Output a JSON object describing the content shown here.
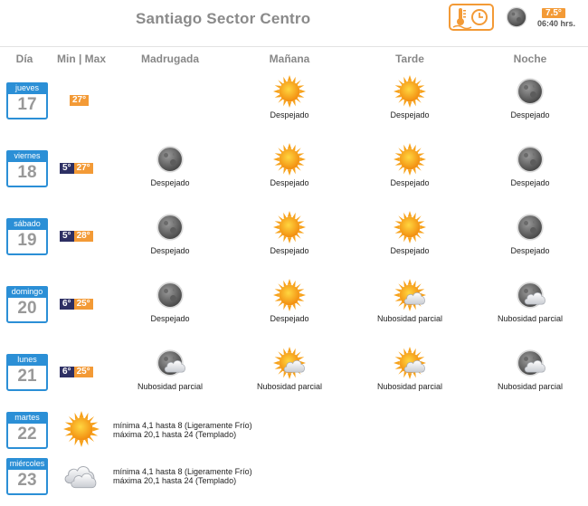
{
  "header": {
    "city": "Santiago Sector Centro",
    "current_icon": "thermometer-clock-icon",
    "current_condition_icon": "moon-icon",
    "current_temp": "7.5°",
    "current_time": "06:40 hrs."
  },
  "columns": {
    "dia": "Día",
    "minmax": "Min | Max",
    "madrugada": "Madrugada",
    "manana": "Mañana",
    "tarde": "Tarde",
    "noche": "Noche"
  },
  "colors": {
    "day_blue": "#2b8fd6",
    "min_navy": "#2d2f63",
    "max_orange": "#f39a36"
  },
  "days": [
    {
      "name": "jueves",
      "num": "17",
      "min": "",
      "max": "27°",
      "madrugada": {
        "icon": "",
        "label": ""
      },
      "manana": {
        "icon": "sun-icon",
        "label": "Despejado"
      },
      "tarde": {
        "icon": "sun-icon",
        "label": "Despejado"
      },
      "noche": {
        "icon": "moon-icon",
        "label": "Despejado"
      }
    },
    {
      "name": "viernes",
      "num": "18",
      "min": "5°",
      "max": "27°",
      "madrugada": {
        "icon": "moon-icon",
        "label": "Despejado"
      },
      "manana": {
        "icon": "sun-icon",
        "label": "Despejado"
      },
      "tarde": {
        "icon": "sun-icon",
        "label": "Despejado"
      },
      "noche": {
        "icon": "moon-icon",
        "label": "Despejado"
      }
    },
    {
      "name": "sábado",
      "num": "19",
      "min": "5°",
      "max": "28°",
      "madrugada": {
        "icon": "moon-icon",
        "label": "Despejado"
      },
      "manana": {
        "icon": "sun-icon",
        "label": "Despejado"
      },
      "tarde": {
        "icon": "sun-icon",
        "label": "Despejado"
      },
      "noche": {
        "icon": "moon-icon",
        "label": "Despejado"
      }
    },
    {
      "name": "domingo",
      "num": "20",
      "min": "6°",
      "max": "25°",
      "madrugada": {
        "icon": "moon-icon",
        "label": "Despejado"
      },
      "manana": {
        "icon": "sun-icon",
        "label": "Despejado"
      },
      "tarde": {
        "icon": "sun-cloud-icon",
        "label": "Nubosidad parcial"
      },
      "noche": {
        "icon": "moon-cloud-icon",
        "label": "Nubosidad parcial"
      }
    },
    {
      "name": "lunes",
      "num": "21",
      "min": "6°",
      "max": "25°",
      "madrugada": {
        "icon": "moon-cloud-icon",
        "label": "Nubosidad parcial"
      },
      "manana": {
        "icon": "sun-cloud-icon",
        "label": "Nubosidad parcial"
      },
      "tarde": {
        "icon": "sun-cloud-icon",
        "label": "Nubosidad parcial"
      },
      "noche": {
        "icon": "moon-cloud-icon",
        "label": "Nubosidad parcial"
      }
    }
  ],
  "extended": [
    {
      "name": "martes",
      "num": "22",
      "icon": "sun-icon",
      "line1": "mínima 4,1 hasta 8 (Ligeramente Frío)",
      "line2": "máxima 20,1 hasta 24 (Templado)"
    },
    {
      "name": "miércoles",
      "num": "23",
      "icon": "cloudy-icon",
      "line1": "mínima 4,1 hasta 8 (Ligeramente Frío)",
      "line2": "máxima 20,1 hasta 24 (Templado)"
    }
  ]
}
